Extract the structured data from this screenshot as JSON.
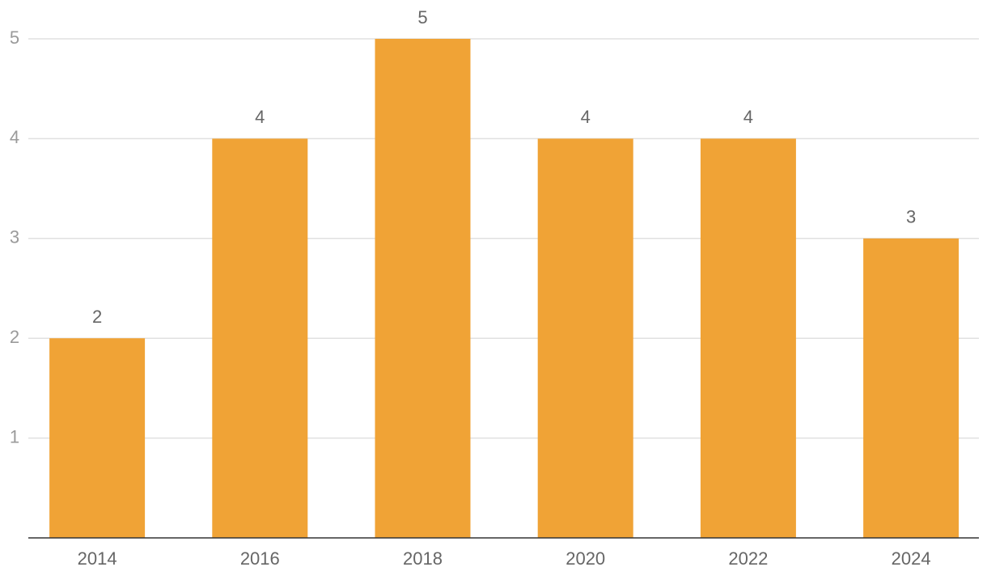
{
  "chart_data": {
    "type": "bar",
    "categories": [
      "2014",
      "2016",
      "2018",
      "2020",
      "2022",
      "2024"
    ],
    "values": [
      2,
      4,
      5,
      4,
      4,
      3
    ],
    "color": "#f0a336",
    "ylim": [
      0,
      5
    ],
    "yticks": [
      1,
      2,
      3,
      4,
      5
    ],
    "grid": true
  }
}
